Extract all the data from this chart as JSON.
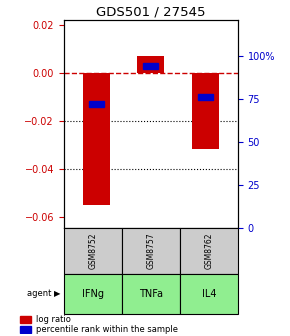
{
  "title": "GDS501 / 27545",
  "categories": [
    "IFNg",
    "TNFa",
    "IL4"
  ],
  "sample_ids": [
    "GSM8752",
    "GSM8757",
    "GSM8762"
  ],
  "bar_values": [
    -0.055,
    0.007,
    -0.032
  ],
  "percentile_values": [
    -0.013,
    0.003,
    -0.01
  ],
  "ylim_left": [
    -0.065,
    0.022
  ],
  "ylim_right": [
    0,
    121
  ],
  "yticks_left": [
    0.02,
    0,
    -0.02,
    -0.04,
    -0.06
  ],
  "yticks_right": [
    100,
    75,
    50,
    25,
    0
  ],
  "bar_color": "#cc0000",
  "percentile_color": "#0000cc",
  "zero_line_color": "#cc0000",
  "agent_box_color": "#90ee90",
  "sample_box_color": "#cccccc",
  "bar_width": 0.5,
  "figsize": [
    2.9,
    3.36
  ],
  "dpi": 100
}
